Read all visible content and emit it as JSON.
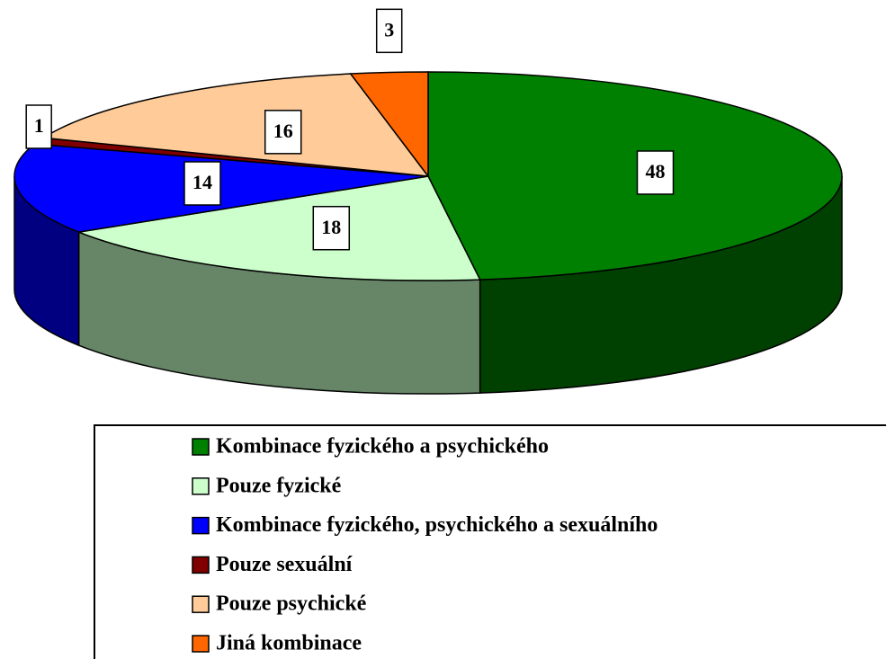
{
  "chart_data": {
    "type": "pie3d",
    "categories": [
      "Kombinace fyzického a psychického",
      "Pouze fyzické",
      "Kombinace fyzického, psychického a sexuálního",
      "Pouze sexuální",
      "Pouze psychické",
      "Jiná kombinace"
    ],
    "values": [
      48,
      18,
      14,
      1,
      16,
      3
    ],
    "colors": [
      "#008000",
      "#ccffcc",
      "#0000ff",
      "#800000",
      "#ffcc99",
      "#ff6600"
    ],
    "legend": "bottom"
  }
}
